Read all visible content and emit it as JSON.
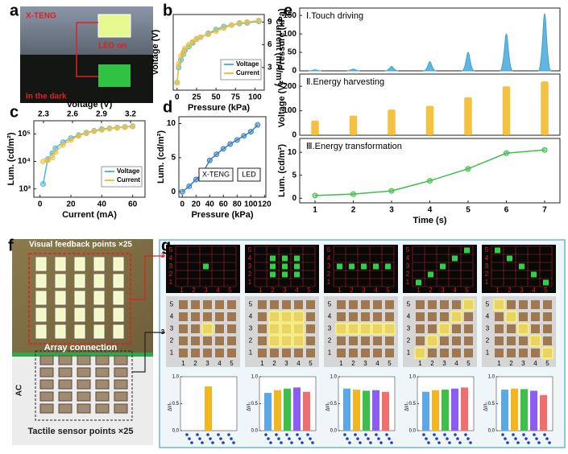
{
  "panel_labels": [
    "a",
    "b",
    "c",
    "d",
    "e",
    "f",
    "g"
  ],
  "photo_a": {
    "device": "X-TENG",
    "top": "LED on",
    "bottom": "In the dark"
  },
  "photo_f": {
    "top": "Visual feedback points ×25",
    "middle": "Array connection",
    "source": "AC",
    "bottom": "Tactile sensor points ×25"
  },
  "chart_data": [
    {
      "type": "line",
      "xlabel": "Pressure (kPa)",
      "ylabel": "Voltage (V)",
      "y2label": "Current (mA/m²)",
      "x": [
        0,
        2,
        5,
        8,
        10,
        15,
        20,
        25,
        30,
        40,
        50,
        60,
        70,
        80,
        90,
        105
      ],
      "xlim": [
        -5,
        112
      ],
      "xticks": [
        0,
        25,
        50,
        75,
        100
      ],
      "ylim": [
        0,
        200
      ],
      "y2lim": [
        0,
        10
      ],
      "y2ticks": [
        3,
        6,
        9
      ],
      "legend": "lower right",
      "series": [
        {
          "name": "Voltage",
          "color": "#4fb8dc",
          "values": [
            20,
            60,
            80,
            95,
            105,
            115,
            125,
            135,
            140,
            150,
            160,
            168,
            172,
            176,
            178,
            182
          ]
        },
        {
          "name": "Current",
          "color": "#f0c040",
          "axis": "y2",
          "values": [
            1,
            3.5,
            4.5,
            5,
            5.5,
            6,
            6.4,
            6.8,
            7,
            7.4,
            7.8,
            8.2,
            8.6,
            8.9,
            9,
            9.2
          ]
        }
      ]
    },
    {
      "type": "line",
      "xlabel": "Current (mA)",
      "ylabel": "Lum. (cd/m²)",
      "x2label": "Voltage (V)",
      "x": [
        2,
        5,
        8,
        10,
        15,
        20,
        25,
        30,
        35,
        40,
        45,
        50,
        55,
        60
      ],
      "xlim": [
        -4,
        68
      ],
      "xticks": [
        0,
        20,
        40,
        60
      ],
      "x2lim": [
        2.2,
        3.35
      ],
      "x2ticks": [
        2.3,
        2.6,
        2.9,
        3.2
      ],
      "ylog": true,
      "ylim": [
        500,
        300000
      ],
      "yticks": [
        {
          "value": 1000,
          "label": "10³"
        },
        {
          "value": 10000,
          "label": "10⁴"
        },
        {
          "value": 100000,
          "label": "10⁵"
        }
      ],
      "legend": "lower right",
      "series": [
        {
          "name": "Voltage",
          "color": "#4fb8dc",
          "values": [
            1500,
            12000,
            20000,
            30000,
            50000,
            70000,
            90000,
            110000,
            130000,
            150000,
            160000,
            170000,
            180000,
            190000
          ]
        },
        {
          "name": "Current",
          "color": "#f0c040",
          "values": [
            10000,
            11000,
            14000,
            22000,
            40000,
            60000,
            85000,
            105000,
            125000,
            140000,
            155000,
            165000,
            175000,
            185000
          ]
        }
      ]
    },
    {
      "type": "line",
      "xlabel": "Pressure (kPa)",
      "ylabel": "Lum. (cd/m²)",
      "annotations": [
        "X-TENG",
        "LED"
      ],
      "x": [
        0,
        10,
        20,
        30,
        40,
        50,
        60,
        70,
        80,
        90,
        100,
        110
      ],
      "xlim": [
        -5,
        122
      ],
      "xticks": [
        0,
        20,
        40,
        60,
        80,
        100,
        120
      ],
      "ylim": [
        -0.8,
        11
      ],
      "yticks": [
        0,
        5,
        10
      ],
      "series": [
        {
          "color": "#3a7fc0",
          "values": [
            0,
            0.8,
            1.8,
            2.8,
            4.6,
            5.5,
            6.3,
            7,
            7.6,
            8.2,
            8.8,
            9.8
          ]
        }
      ]
    },
    {
      "type": "area",
      "title": "Ⅰ.Touch driving",
      "ylabel": "Pressure (kPa)",
      "x": [
        1,
        2,
        3,
        4,
        5,
        6,
        7
      ],
      "xlim": [
        0.6,
        7.4
      ],
      "ylim": [
        0,
        170
      ],
      "yticks": [
        0,
        50,
        100,
        150
      ],
      "series": [
        {
          "color": "#3ba3d8",
          "values": [
            3,
            5,
            12,
            25,
            50,
            100,
            155
          ]
        }
      ]
    },
    {
      "type": "bar",
      "title": "Ⅱ.Energy harvesting",
      "ylabel": "Voltage (V)",
      "x": [
        1,
        2,
        3,
        4,
        5,
        6,
        7
      ],
      "xlim": [
        0.6,
        7.4
      ],
      "ylim": [
        0,
        250
      ],
      "yticks": [
        0,
        100,
        200
      ],
      "series": [
        {
          "color": "#f2b61e",
          "values": [
            60,
            80,
            105,
            120,
            155,
            200,
            220
          ]
        }
      ]
    },
    {
      "type": "line",
      "title": "Ⅲ.Energy transformation",
      "ylabel": "Lum. (cd/m²)",
      "xlabel": "Time (s)",
      "x": [
        1,
        2,
        3,
        4,
        5,
        6,
        7
      ],
      "xlim": [
        0.6,
        7.4
      ],
      "xticks": [
        1,
        2,
        3,
        4,
        5,
        6,
        7
      ],
      "ylim": [
        -1,
        13
      ],
      "yticks": [
        0,
        5,
        10
      ],
      "series": [
        {
          "color": "#3cc04a",
          "values": [
            0.6,
            0.9,
            1.6,
            3.8,
            6.4,
            9.8,
            10.5
          ]
        }
      ]
    }
  ],
  "g": {
    "axis_labels": [
      "1",
      "2",
      "3",
      "4",
      "5"
    ],
    "row_marker": "3",
    "bar_ylabel": "ΔI/I₀",
    "bar_yticks": [
      {
        "value": 0,
        "label": "0.0"
      },
      {
        "value": 0.5,
        "label": "0.5"
      },
      {
        "value": 1,
        "label": "1.0"
      }
    ],
    "bar_colors": [
      "#5aa9e6",
      "#f2b61e",
      "#3cc04a",
      "#8b5cf6",
      "#ef6f6f"
    ],
    "columns": [
      {
        "lit": [
          [
            3,
            3
          ]
        ],
        "bars": [
          0.82
        ]
      },
      {
        "lit": [
          [
            2,
            2
          ],
          [
            3,
            2
          ],
          [
            4,
            2
          ],
          [
            2,
            3
          ],
          [
            3,
            3
          ],
          [
            4,
            3
          ],
          [
            2,
            4
          ],
          [
            3,
            4
          ],
          [
            4,
            4
          ]
        ],
        "bars": [
          0.7,
          0.75,
          0.78,
          0.8,
          0.72
        ]
      },
      {
        "lit": [
          [
            1,
            3
          ],
          [
            2,
            3
          ],
          [
            3,
            3
          ],
          [
            4,
            3
          ],
          [
            5,
            3
          ]
        ],
        "bars": [
          0.78,
          0.76,
          0.74,
          0.75,
          0.72
        ]
      },
      {
        "lit": [
          [
            1,
            1
          ],
          [
            2,
            2
          ],
          [
            3,
            3
          ],
          [
            4,
            4
          ],
          [
            5,
            5
          ]
        ],
        "bars": [
          0.72,
          0.75,
          0.76,
          0.78,
          0.8
        ]
      },
      {
        "lit": [
          [
            1,
            5
          ],
          [
            2,
            4
          ],
          [
            3,
            3
          ],
          [
            4,
            2
          ],
          [
            5,
            1
          ]
        ],
        "bars": [
          0.76,
          0.78,
          0.77,
          0.74,
          0.66
        ]
      }
    ]
  }
}
